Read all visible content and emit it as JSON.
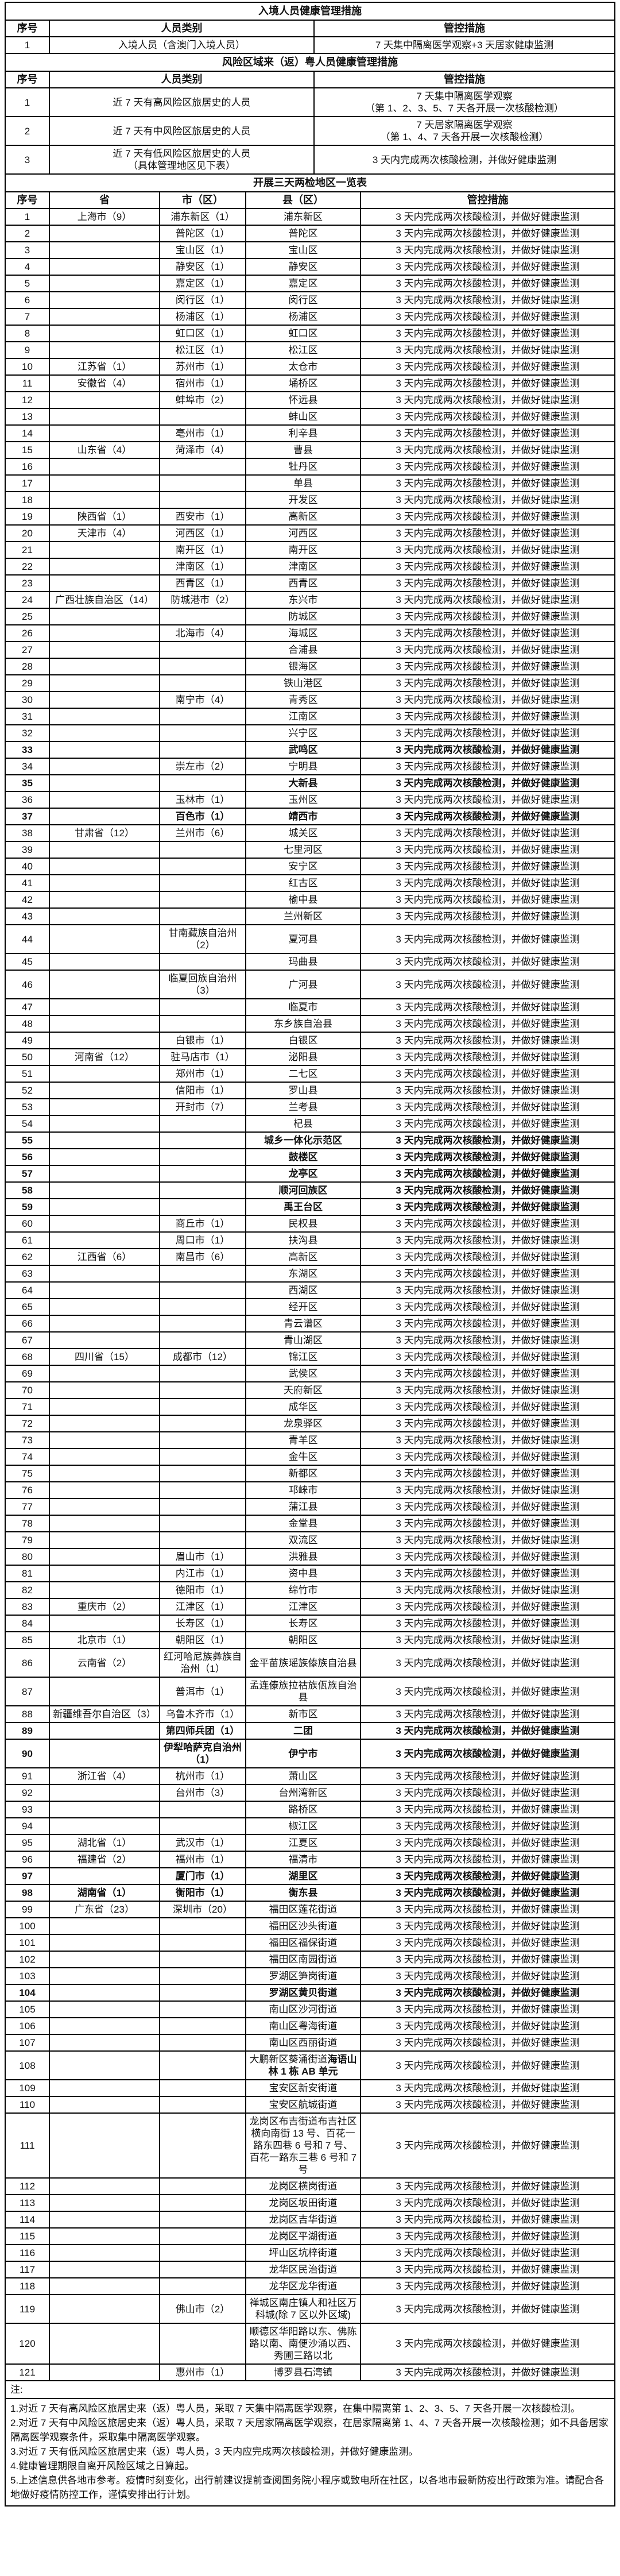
{
  "page": {
    "background": "#ffffff",
    "border_color": "#000000",
    "text_color": "#111111"
  },
  "entry_table": {
    "title": "入境人员健康管理措施",
    "headers": [
      "序号",
      "人员类别",
      "管控措施"
    ],
    "rows": [
      {
        "no": "1",
        "category": [
          "入境人员（含澳门入境人员）"
        ],
        "measure": [
          "7 天集中隔离医学观察+3 天居家健康监测"
        ]
      }
    ]
  },
  "risk_table": {
    "title": "风险区域来（返）粤人员健康管理措施",
    "headers": [
      "序号",
      "人员类别",
      "管控措施"
    ],
    "rows": [
      {
        "no": "1",
        "category": [
          "近 7 天有高风险区旅居史的人员"
        ],
        "measure": [
          "7 天集中隔离医学观察",
          "（第 1、2、3、5、7 天各开展一次核酸检测）"
        ]
      },
      {
        "no": "2",
        "category": [
          "近 7 天有中风险区旅居史的人员"
        ],
        "measure": [
          "7 天居家隔离医学观察",
          "（第 1、4、7 天各开展一次核酸检测）"
        ]
      },
      {
        "no": "3",
        "category": [
          "近 7 天有低风险区旅居史的人员",
          "（具体管理地区见下表）"
        ],
        "measure": [
          "3 天内完成两次核酸检测，并做好健康监测"
        ]
      }
    ]
  },
  "district_table": {
    "title": "开展三天两检地区一览表",
    "headers": [
      "序号",
      "省",
      "市（区）",
      "县（区）",
      "管控措施"
    ],
    "default_measure": "3 天内完成两次核酸检测，并做好健康监测",
    "rows": [
      [
        1,
        "上海市（9）",
        "浦东新区（1）",
        "浦东新区",
        0
      ],
      [
        2,
        "",
        "普陀区（1）",
        "普陀区",
        0
      ],
      [
        3,
        "",
        "宝山区（1）",
        "宝山区",
        0
      ],
      [
        4,
        "",
        "静安区（1）",
        "静安区",
        0
      ],
      [
        5,
        "",
        "嘉定区（1）",
        "嘉定区",
        0
      ],
      [
        6,
        "",
        "闵行区（1）",
        "闵行区",
        0
      ],
      [
        7,
        "",
        "杨浦区（1）",
        "杨浦区",
        0
      ],
      [
        8,
        "",
        "虹口区（1）",
        "虹口区",
        0
      ],
      [
        9,
        "",
        "松江区（1）",
        "松江区",
        0
      ],
      [
        10,
        "江苏省（1）",
        "苏州市（1）",
        "太仓市",
        0
      ],
      [
        11,
        "安徽省（4）",
        "宿州市（1）",
        "埇桥区",
        0
      ],
      [
        12,
        "",
        "蚌埠市（2）",
        "怀远县",
        0
      ],
      [
        13,
        "",
        "",
        "蚌山区",
        0
      ],
      [
        14,
        "",
        "亳州市（1）",
        "利辛县",
        0
      ],
      [
        15,
        "山东省（4）",
        "菏泽市（4）",
        "曹县",
        0
      ],
      [
        16,
        "",
        "",
        "牡丹区",
        0
      ],
      [
        17,
        "",
        "",
        "单县",
        0
      ],
      [
        18,
        "",
        "",
        "开发区",
        0
      ],
      [
        19,
        "陕西省（1）",
        "西安市（1）",
        "高新区",
        0
      ],
      [
        20,
        "天津市（4）",
        "河西区（1）",
        "河西区",
        0
      ],
      [
        21,
        "",
        "南开区（1）",
        "南开区",
        0
      ],
      [
        22,
        "",
        "津南区（1）",
        "津南区",
        0
      ],
      [
        23,
        "",
        "西青区（1）",
        "西青区",
        0
      ],
      [
        24,
        "广西壮族自治区（14）",
        "防城港市（2）",
        "东兴市",
        0
      ],
      [
        25,
        "",
        "",
        "防城区",
        0
      ],
      [
        26,
        "",
        "北海市（4）",
        "海城区",
        0
      ],
      [
        27,
        "",
        "",
        "合浦县",
        0
      ],
      [
        28,
        "",
        "",
        "银海区",
        0
      ],
      [
        29,
        "",
        "",
        "铁山港区",
        0
      ],
      [
        30,
        "",
        "南宁市（4）",
        "青秀区",
        0
      ],
      [
        31,
        "",
        "",
        "江南区",
        0
      ],
      [
        32,
        "",
        "",
        "兴宁区",
        0
      ],
      [
        33,
        "",
        "",
        "武鸣区",
        1
      ],
      [
        34,
        "",
        "崇左市（2）",
        "宁明县",
        0
      ],
      [
        35,
        "",
        "",
        "大新县",
        1
      ],
      [
        36,
        "",
        "玉林市（1）",
        "玉州区",
        0
      ],
      [
        37,
        "",
        "百色市（1）",
        "靖西市",
        1
      ],
      [
        38,
        "甘肃省（12）",
        "兰州市（6）",
        "城关区",
        0
      ],
      [
        39,
        "",
        "",
        "七里河区",
        0
      ],
      [
        40,
        "",
        "",
        "安宁区",
        0
      ],
      [
        41,
        "",
        "",
        "红古区",
        0
      ],
      [
        42,
        "",
        "",
        "榆中县",
        0
      ],
      [
        43,
        "",
        "",
        "兰州新区",
        0
      ],
      [
        44,
        "",
        "甘南藏族自治州（2）",
        "夏河县",
        0
      ],
      [
        45,
        "",
        "",
        "玛曲县",
        0
      ],
      [
        46,
        "",
        "临夏回族自治州（3）",
        "广河县",
        0
      ],
      [
        47,
        "",
        "",
        "临夏市",
        0
      ],
      [
        48,
        "",
        "",
        "东乡族自治县",
        0
      ],
      [
        49,
        "",
        "白银市（1）",
        "白银区",
        0
      ],
      [
        50,
        "河南省（12）",
        "驻马店市（1）",
        "泌阳县",
        0
      ],
      [
        51,
        "",
        "郑州市（1）",
        "二七区",
        0
      ],
      [
        52,
        "",
        "信阳市（1）",
        "罗山县",
        0
      ],
      [
        53,
        "",
        "开封市（7）",
        "兰考县",
        0
      ],
      [
        54,
        "",
        "",
        "杞县",
        0
      ],
      [
        55,
        "",
        "",
        "城乡一体化示范区",
        1
      ],
      [
        56,
        "",
        "",
        "鼓楼区",
        1
      ],
      [
        57,
        "",
        "",
        "龙亭区",
        1
      ],
      [
        58,
        "",
        "",
        "顺河回族区",
        1
      ],
      [
        59,
        "",
        "",
        "禹王台区",
        1
      ],
      [
        60,
        "",
        "商丘市（1）",
        "民权县",
        0
      ],
      [
        61,
        "",
        "周口市（1）",
        "扶沟县",
        0
      ],
      [
        62,
        "江西省（6）",
        "南昌市（6）",
        "高新区",
        0
      ],
      [
        63,
        "",
        "",
        "东湖区",
        0
      ],
      [
        64,
        "",
        "",
        "西湖区",
        0
      ],
      [
        65,
        "",
        "",
        "经开区",
        0
      ],
      [
        66,
        "",
        "",
        "青云谱区",
        0
      ],
      [
        67,
        "",
        "",
        "青山湖区",
        0
      ],
      [
        68,
        "四川省（15）",
        "成都市（12）",
        "锦江区",
        0
      ],
      [
        69,
        "",
        "",
        "武侯区",
        0
      ],
      [
        70,
        "",
        "",
        "天府新区",
        0
      ],
      [
        71,
        "",
        "",
        "成华区",
        0
      ],
      [
        72,
        "",
        "",
        "龙泉驿区",
        0
      ],
      [
        73,
        "",
        "",
        "青羊区",
        0
      ],
      [
        74,
        "",
        "",
        "金牛区",
        0
      ],
      [
        75,
        "",
        "",
        "新都区",
        0
      ],
      [
        76,
        "",
        "",
        "邛崃市",
        0
      ],
      [
        77,
        "",
        "",
        "蒲江县",
        0
      ],
      [
        78,
        "",
        "",
        "金堂县",
        0
      ],
      [
        79,
        "",
        "",
        "双流区",
        0
      ],
      [
        80,
        "",
        "眉山市（1）",
        "洪雅县",
        0
      ],
      [
        81,
        "",
        "内江市（1）",
        "资中县",
        0
      ],
      [
        82,
        "",
        "德阳市（1）",
        "绵竹市",
        0
      ],
      [
        83,
        "重庆市（2）",
        "江津区（1）",
        "江津区",
        0
      ],
      [
        84,
        "",
        "长寿区（1）",
        "长寿区",
        0
      ],
      [
        85,
        "北京市（1）",
        "朝阳区（1）",
        "朝阳区",
        0
      ],
      [
        86,
        "云南省（2）",
        "红河哈尼族彝族自治州（1）",
        "金平苗族瑶族傣族自治县",
        0
      ],
      [
        87,
        "",
        "普洱市（1）",
        "孟连傣族拉祜族佤族自治县",
        0
      ],
      [
        88,
        "新疆维吾尔自治区（3）",
        "乌鲁木齐市（1）",
        "新市区",
        0
      ],
      [
        89,
        "",
        "第四师兵团（1）",
        "二团",
        1
      ],
      [
        90,
        "",
        "伊犁哈萨克自治州（1）",
        "伊宁市",
        1
      ],
      [
        91,
        "浙江省（4）",
        "杭州市（1）",
        "萧山区",
        0
      ],
      [
        92,
        "",
        "台州市（3）",
        "台州湾新区",
        0
      ],
      [
        93,
        "",
        "",
        "路桥区",
        0
      ],
      [
        94,
        "",
        "",
        "椒江区",
        0
      ],
      [
        95,
        "湖北省（1）",
        "武汉市（1）",
        "江夏区",
        0
      ],
      [
        96,
        "福建省（2）",
        "福州市（1）",
        "福清市",
        0
      ],
      [
        97,
        "",
        "厦门市（1）",
        "湖里区",
        1
      ],
      [
        98,
        "湖南省（1）",
        "衡阳市（1）",
        "衡东县",
        1
      ],
      [
        99,
        "广东省（23）",
        "深圳市（20）",
        "福田区莲花街道",
        0
      ],
      [
        100,
        "",
        "",
        "福田区沙头街道",
        0
      ],
      [
        101,
        "",
        "",
        "福田区福保街道",
        0
      ],
      [
        102,
        "",
        "",
        "福田区南园街道",
        0
      ],
      [
        103,
        "",
        "",
        "罗湖区笋岗街道",
        0
      ],
      [
        104,
        "",
        "",
        "罗湖区黄贝街道",
        1
      ],
      [
        105,
        "",
        "",
        "南山区沙河街道",
        0
      ],
      [
        106,
        "",
        "",
        "南山区粤海街道",
        0
      ],
      [
        107,
        "",
        "",
        "南山区西丽街道",
        0
      ],
      [
        108,
        "",
        "",
        "大鹏新区葵涌街道",
        0,
        "海语山林 1 栋 AB 单元"
      ],
      [
        109,
        "",
        "",
        "宝安区新安街道",
        0
      ],
      [
        110,
        "",
        "",
        "宝安区航城街道",
        0
      ],
      [
        111,
        "",
        "",
        "龙岗区布吉街道布吉社区横向南街 13 号、百花一路东四巷 6 号和 7 号、百花一路东三巷 6 号和 7 号",
        0
      ],
      [
        112,
        "",
        "",
        "龙岗区横岗街道",
        0
      ],
      [
        113,
        "",
        "",
        "龙岗区坂田街道",
        0
      ],
      [
        114,
        "",
        "",
        "龙岗区吉华街道",
        0
      ],
      [
        115,
        "",
        "",
        "龙岗区平湖街道",
        0
      ],
      [
        116,
        "",
        "",
        "坪山区坑梓街道",
        0
      ],
      [
        117,
        "",
        "",
        "龙华区民治街道",
        0
      ],
      [
        118,
        "",
        "",
        "龙华区龙华街道",
        0
      ],
      [
        119,
        "",
        "佛山市（2）",
        "禅城区南庄镇人和社区万科城(除 7 区以外区域)",
        0
      ],
      [
        120,
        "",
        "",
        "顺德区华阳路以东、佛陈路以南、南便沙涌以西、秀圃三路以北",
        0
      ],
      [
        121,
        "",
        "惠州市（1）",
        "博罗县石湾镇",
        0
      ]
    ]
  },
  "notes": {
    "label": "注:",
    "items": [
      "1.对近 7 天有高风险区旅居史来（返）粤人员，采取 7 天集中隔离医学观察，在集中隔离第 1、2、3、5、7 天各开展一次核酸检测。",
      "2.对近 7 天有中风险区旅居史来（返）粤人员，采取 7 天居家隔离医学观察，在居家隔离第 1、4、7 天各开展一次核酸检测；如不具备居家隔离医学观察条件，采取集中隔离医学观察。",
      "3.对近 7 天有低风险区旅居史来（返）粤人员，3 天内应完成两次核酸检测，并做好健康监测。",
      "4.健康管理期限自离开风险区域之日算起。",
      "5.上述信息供各地市参考。疫情时刻变化，出行前建议提前查阅国务院小程序或致电所在社区，以各地市最新防疫出行政策为准。请配合各地做好疫情防控工作，谨慎安排出行计划。"
    ]
  }
}
